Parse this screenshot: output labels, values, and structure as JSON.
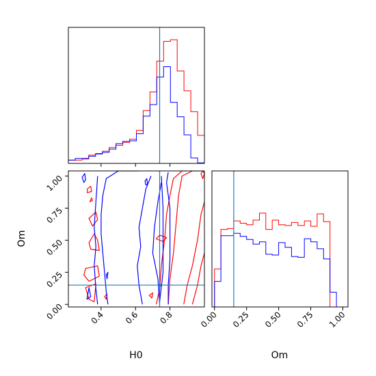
{
  "chart_data": {
    "type": "corner",
    "params": [
      "H0",
      "Om"
    ],
    "truths": {
      "H0": 0.74,
      "Om": 0.15
    },
    "colors": {
      "series_a": "#ff0000",
      "series_b": "#0000ff",
      "truth": "#1f77b4"
    },
    "axes": {
      "H0": {
        "label": "H0",
        "range": [
          0.21,
          1.0
        ],
        "ticks": [
          0.4,
          0.6,
          0.8
        ],
        "tick_labels": [
          "0.4",
          "0.6",
          "0.8"
        ]
      },
      "Om": {
        "label": "Om",
        "range": [
          -0.02,
          1.04
        ],
        "ticks": [
          0.0,
          0.25,
          0.5,
          0.75,
          1.0
        ],
        "tick_labels": [
          "0.00",
          "0.25",
          "0.50",
          "0.75",
          "1.00"
        ]
      }
    },
    "hist_H0": {
      "edges": [
        0.21,
        0.2495,
        0.289,
        0.3285,
        0.368,
        0.4075,
        0.447,
        0.4865,
        0.526,
        0.5655,
        0.605,
        0.6445,
        0.684,
        0.7235,
        0.763,
        0.8025,
        0.842,
        0.8815,
        0.921,
        0.9605,
        1.0
      ],
      "series": [
        {
          "values": [
            6,
            6,
            8,
            15,
            18,
            22,
            29,
            33,
            38,
            44,
            60,
            96,
            130,
            186,
            222,
            225,
            168,
            132,
            94,
            51
          ]
        },
        {
          "values": [
            6,
            9,
            9,
            13,
            17,
            20,
            26,
            36,
            40,
            41,
            54,
            86,
            107,
            157,
            176,
            111,
            85,
            52,
            10,
            1
          ]
        }
      ]
    },
    "hist_Om": {
      "edges": [
        0.0,
        0.05,
        0.1,
        0.15,
        0.2,
        0.25,
        0.3,
        0.35,
        0.4,
        0.45,
        0.5,
        0.55,
        0.6,
        0.65,
        0.7,
        0.75,
        0.8,
        0.85,
        0.9,
        0.95,
        1.0
      ],
      "series": [
        {
          "values": [
            49,
            100,
            101,
            111,
            108,
            106,
            112,
            121,
            100,
            112,
            106,
            105,
            109,
            105,
            111,
            104,
            120,
            110,
            0,
            0
          ]
        },
        {
          "values": [
            33,
            92,
            92,
            95,
            91,
            87,
            81,
            84,
            68,
            67,
            83,
            77,
            65,
            64,
            88,
            84,
            75,
            62,
            19,
            0
          ]
        }
      ]
    },
    "contours": [
      {
        "series": 0,
        "points": [
          [
            0.31,
            0.28
          ],
          [
            0.38,
            0.3
          ],
          [
            0.39,
            0.22
          ],
          [
            0.33,
            0.18
          ],
          [
            0.3,
            0.23
          ]
        ]
      },
      {
        "series": 0,
        "points": [
          [
            0.31,
            0.13
          ],
          [
            0.37,
            0.16
          ],
          [
            0.36,
            0.02
          ],
          [
            0.33,
            0.04
          ]
        ]
      },
      {
        "series": 0,
        "points": [
          [
            0.34,
            0.43
          ],
          [
            0.39,
            0.42
          ],
          [
            0.38,
            0.5
          ],
          [
            0.36,
            0.55
          ],
          [
            0.33,
            0.48
          ]
        ]
      },
      {
        "series": 0,
        "points": [
          [
            0.35,
            0.61
          ],
          [
            0.38,
            0.66
          ],
          [
            0.37,
            0.72
          ],
          [
            0.33,
            0.67
          ]
        ]
      },
      {
        "series": 0,
        "points": [
          [
            0.32,
            0.87
          ],
          [
            0.345,
            0.88
          ],
          [
            0.34,
            0.92
          ],
          [
            0.32,
            0.9
          ]
        ]
      },
      {
        "series": 0,
        "points": [
          [
            0.335,
            0.8
          ],
          [
            0.35,
            0.81
          ],
          [
            0.345,
            0.83
          ]
        ]
      },
      {
        "series": 0,
        "points": [
          [
            0.42,
            0.06
          ],
          [
            0.435,
            0.08
          ],
          [
            0.43,
            0.04
          ]
        ]
      },
      {
        "series": 0,
        "points": [
          [
            0.68,
            0.07
          ],
          [
            0.7,
            0.09
          ],
          [
            0.695,
            0.05
          ]
        ]
      },
      {
        "series": 0,
        "points": [
          [
            0.72,
            0.51
          ],
          [
            0.76,
            0.49
          ],
          [
            0.78,
            0.52
          ],
          [
            0.74,
            0.54
          ]
        ]
      },
      {
        "series": 0,
        "points": [
          [
            0.98,
            1.02
          ],
          [
            0.99,
            1.04
          ],
          [
            1.0,
            1.02
          ],
          [
            0.99,
            0.98
          ]
        ]
      },
      {
        "series": 0,
        "closed": false,
        "points": [
          [
            0.72,
            0.0
          ],
          [
            0.74,
            0.12
          ],
          [
            0.75,
            0.3
          ],
          [
            0.77,
            0.52
          ],
          [
            0.78,
            0.7
          ],
          [
            0.8,
            0.85
          ],
          [
            0.82,
            0.98
          ],
          [
            0.87,
            1.04
          ],
          [
            0.9,
            1.04
          ]
        ]
      },
      {
        "series": 0,
        "closed": false,
        "points": [
          [
            0.79,
            0.0
          ],
          [
            0.8,
            0.2
          ],
          [
            0.82,
            0.4
          ],
          [
            0.83,
            0.55
          ],
          [
            0.84,
            0.7
          ],
          [
            0.85,
            0.85
          ],
          [
            0.87,
            1.0
          ],
          [
            0.93,
            1.04
          ],
          [
            0.97,
            1.04
          ]
        ]
      },
      {
        "series": 0,
        "closed": false,
        "points": [
          [
            0.88,
            0.0
          ],
          [
            0.9,
            0.15
          ],
          [
            0.93,
            0.3
          ],
          [
            0.96,
            0.5
          ],
          [
            0.98,
            0.7
          ],
          [
            1.0,
            0.8
          ]
        ]
      },
      {
        "series": 0,
        "closed": false,
        "points": [
          [
            0.93,
            0.0
          ],
          [
            0.96,
            0.15
          ],
          [
            0.98,
            0.3
          ],
          [
            1.0,
            0.4
          ]
        ]
      },
      {
        "series": 1,
        "closed": false,
        "points": [
          [
            0.44,
            0.0
          ],
          [
            0.43,
            0.1
          ],
          [
            0.42,
            0.25
          ],
          [
            0.41,
            0.4
          ],
          [
            0.4,
            0.55
          ],
          [
            0.4,
            0.7
          ],
          [
            0.41,
            0.85
          ],
          [
            0.43,
            0.98
          ],
          [
            0.5,
            1.04
          ],
          [
            0.62,
            1.04
          ]
        ]
      },
      {
        "series": 1,
        "closed": false,
        "points": [
          [
            0.38,
            0.0
          ],
          [
            0.37,
            0.12
          ],
          [
            0.36,
            0.3
          ],
          [
            0.37,
            0.45
          ],
          [
            0.36,
            0.6
          ],
          [
            0.37,
            0.8
          ],
          [
            0.38,
            1.0
          ]
        ]
      },
      {
        "series": 1,
        "points": [
          [
            0.29,
            0.99
          ],
          [
            0.305,
            1.02
          ],
          [
            0.31,
            0.97
          ],
          [
            0.3,
            0.95
          ]
        ]
      },
      {
        "series": 1,
        "points": [
          [
            0.318,
            0.04
          ],
          [
            0.33,
            0.13
          ],
          [
            0.34,
            0.06
          ]
        ]
      },
      {
        "series": 1,
        "points": [
          [
            0.43,
            0.23
          ],
          [
            0.44,
            0.25
          ],
          [
            0.435,
            0.2
          ]
        ]
      },
      {
        "series": 1,
        "points": [
          [
            0.655,
            0.96
          ],
          [
            0.665,
            0.98
          ],
          [
            0.67,
            0.94
          ],
          [
            0.66,
            0.93
          ]
        ]
      },
      {
        "series": 1,
        "closed": false,
        "points": [
          [
            0.64,
            0.0
          ],
          [
            0.62,
            0.15
          ],
          [
            0.61,
            0.3
          ],
          [
            0.63,
            0.45
          ],
          [
            0.62,
            0.6
          ],
          [
            0.64,
            0.75
          ],
          [
            0.66,
            0.9
          ],
          [
            0.69,
            1.0
          ]
        ]
      },
      {
        "series": 1,
        "closed": false,
        "points": [
          [
            0.74,
            0.0
          ],
          [
            0.73,
            0.2
          ],
          [
            0.7,
            0.4
          ],
          [
            0.71,
            0.6
          ],
          [
            0.73,
            0.8
          ],
          [
            0.75,
            0.95
          ]
        ]
      },
      {
        "series": 1,
        "closed": false,
        "points": [
          [
            0.74,
            0.02
          ],
          [
            0.76,
            0.25
          ],
          [
            0.76,
            0.5
          ],
          [
            0.76,
            0.75
          ],
          [
            0.75,
            1.0
          ]
        ]
      },
      {
        "series": 1,
        "closed": false,
        "points": [
          [
            0.79,
            0.0
          ],
          [
            0.79,
            0.15
          ],
          [
            0.8,
            0.35
          ],
          [
            0.8,
            0.55
          ],
          [
            0.8,
            0.75
          ],
          [
            0.78,
            0.95
          ],
          [
            0.79,
            1.03
          ]
        ]
      }
    ]
  }
}
